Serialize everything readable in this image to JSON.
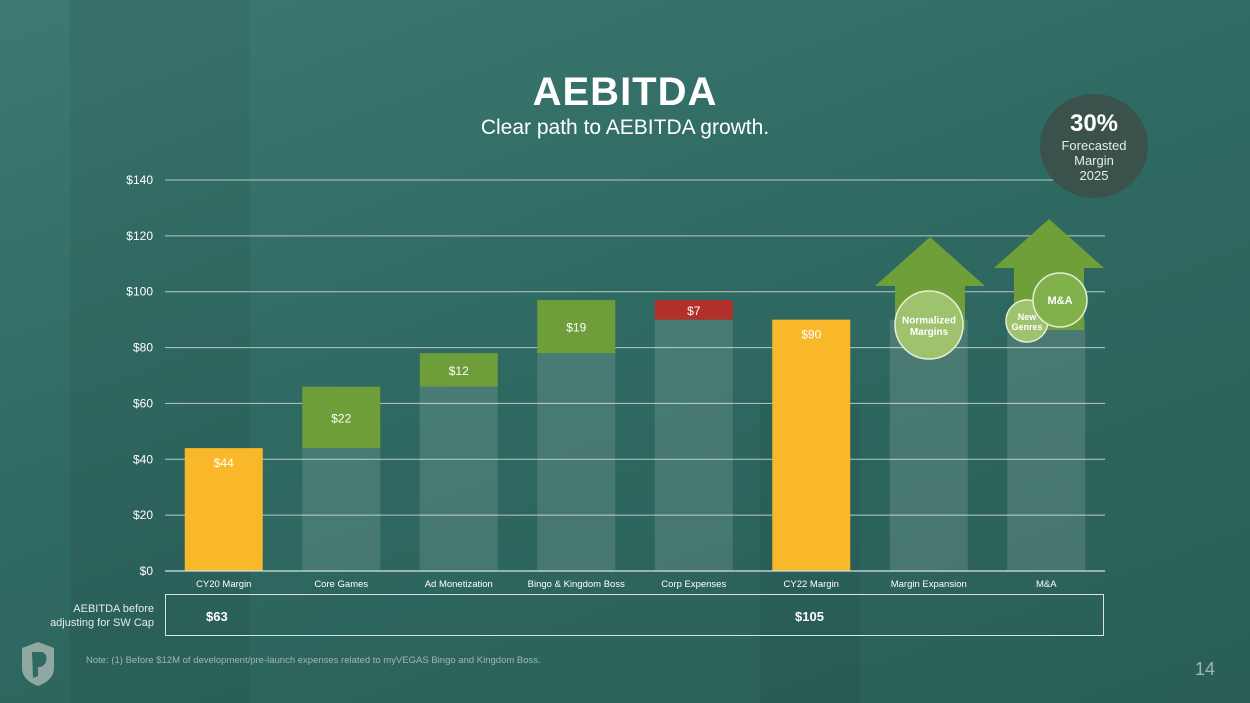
{
  "header": {
    "title": "AEBITDA",
    "subtitle": "Clear path to AEBITDA growth."
  },
  "badge": {
    "value": "30%",
    "line1": "Forecasted",
    "line2": "Margin",
    "line3": "2025"
  },
  "chart_data": {
    "type": "bar",
    "subtype": "waterfall",
    "ylim": [
      0,
      140
    ],
    "yticks": [
      0,
      20,
      40,
      60,
      80,
      100,
      120,
      140
    ],
    "ytick_labels": [
      "$0",
      "$20",
      "$40",
      "$60",
      "$80",
      "$100",
      "$120",
      "$140"
    ],
    "categories": [
      "CY20 Margin",
      "Core Games",
      "Ad Monetization",
      "Bingo & Kingdom Boss",
      "Corp Expenses",
      "CY22 Margin",
      "Margin Expansion",
      "M&A"
    ],
    "bars": [
      {
        "base": 0,
        "top": 44,
        "label": "$44",
        "kind": "total"
      },
      {
        "base": 44,
        "top": 66,
        "label": "$22",
        "kind": "increase"
      },
      {
        "base": 66,
        "top": 78,
        "label": "$12",
        "kind": "increase"
      },
      {
        "base": 78,
        "top": 97,
        "label": "$19",
        "kind": "increase"
      },
      {
        "base": 90,
        "top": 97,
        "label": "$7",
        "kind": "decrease"
      },
      {
        "base": 0,
        "top": 90,
        "label": "$90",
        "kind": "total"
      },
      {
        "base": 0,
        "top": 90,
        "label": "",
        "kind": "projected"
      },
      {
        "base": 0,
        "top": 90,
        "label": "",
        "kind": "projected"
      }
    ],
    "colors": {
      "total": "#f9b72a",
      "increase": "#6d9e3a",
      "decrease": "#b2302a",
      "arrow": "#6e9f38"
    },
    "annotations": [
      "Normalized Margins",
      "New Genres",
      "M&A"
    ],
    "grid": true
  },
  "cap_row": {
    "label_line1": "AEBITDA before",
    "label_line2": "adjusting for SW Cap",
    "cy20": "$63",
    "cy22": "$105"
  },
  "footer": {
    "note": "Note: (1) Before $12M of development/pre-launch expenses related to myVEGAS Bingo and Kingdom Boss.",
    "page": "14"
  }
}
